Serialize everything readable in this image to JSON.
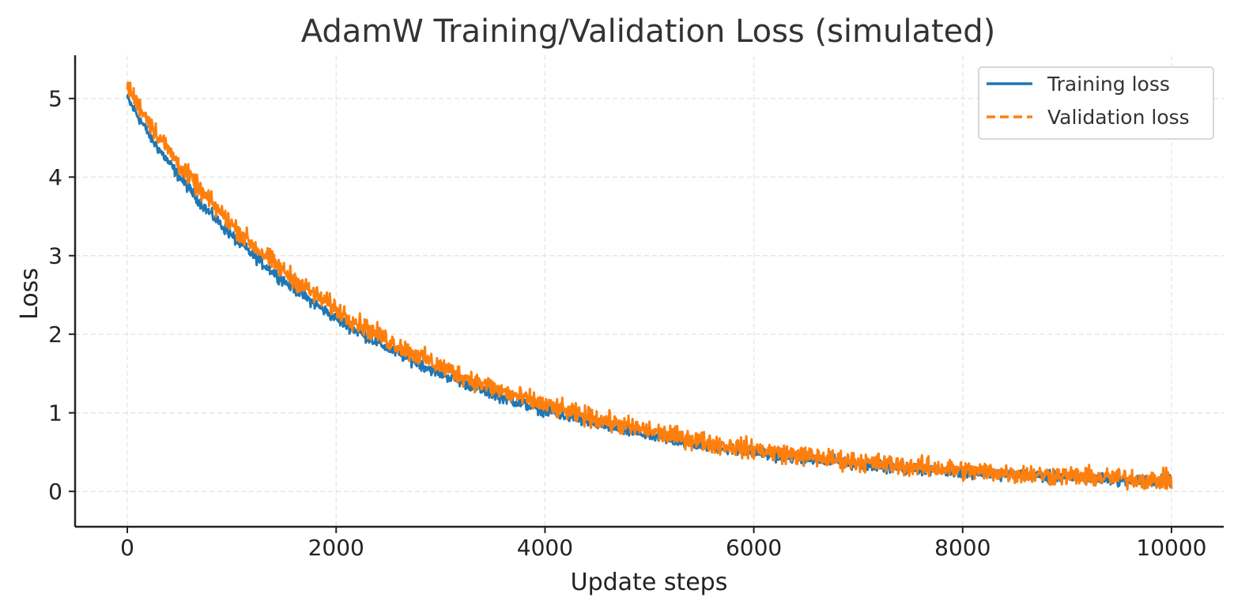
{
  "chart_data": {
    "type": "line",
    "title": "AdamW Training/Validation Loss (simulated)",
    "xlabel": "Update steps",
    "ylabel": "Loss",
    "xlim": [
      -500,
      10500
    ],
    "ylim": [
      -0.45,
      5.55
    ],
    "x_ticks": [
      0,
      2000,
      4000,
      6000,
      8000,
      10000
    ],
    "y_ticks": [
      0,
      1,
      2,
      3,
      4,
      5
    ],
    "grid": true,
    "legend_position": "top-right",
    "series": [
      {
        "name": "Training loss",
        "color": "#1f77b4",
        "dash": "solid",
        "x": [
          0,
          250,
          500,
          750,
          1000,
          1250,
          1500,
          1750,
          2000,
          2250,
          2500,
          2750,
          3000,
          3250,
          3500,
          3750,
          4000,
          4250,
          4500,
          4750,
          5000,
          5250,
          5500,
          5750,
          6000,
          6250,
          6500,
          6750,
          7000,
          7250,
          7500,
          7750,
          8000,
          8250,
          8500,
          8750,
          9000,
          9250,
          9500,
          9750,
          10000
        ],
        "values": [
          5.0,
          4.45,
          4.0,
          3.6,
          3.25,
          2.95,
          2.68,
          2.43,
          2.2,
          2.0,
          1.82,
          1.65,
          1.5,
          1.37,
          1.24,
          1.13,
          1.03,
          0.94,
          0.86,
          0.78,
          0.71,
          0.65,
          0.59,
          0.54,
          0.5,
          0.45,
          0.41,
          0.38,
          0.35,
          0.32,
          0.29,
          0.27,
          0.25,
          0.23,
          0.21,
          0.19,
          0.18,
          0.16,
          0.15,
          0.14,
          0.13
        ]
      },
      {
        "name": "Validation loss",
        "color": "#ff7f0e",
        "dash": "dashed",
        "x": [
          0,
          250,
          500,
          750,
          1000,
          1250,
          1500,
          1750,
          2000,
          2250,
          2500,
          2750,
          3000,
          3250,
          3500,
          3750,
          4000,
          4250,
          4500,
          4750,
          5000,
          5250,
          5500,
          5750,
          6000,
          6250,
          6500,
          6750,
          7000,
          7250,
          7500,
          7750,
          8000,
          8250,
          8500,
          8750,
          9000,
          9250,
          9500,
          9750,
          10000
        ],
        "values": [
          5.15,
          4.62,
          4.15,
          3.75,
          3.4,
          3.08,
          2.8,
          2.55,
          2.32,
          2.11,
          1.92,
          1.75,
          1.59,
          1.45,
          1.32,
          1.2,
          1.1,
          1.0,
          0.92,
          0.84,
          0.77,
          0.7,
          0.64,
          0.58,
          0.54,
          0.49,
          0.45,
          0.41,
          0.38,
          0.35,
          0.32,
          0.3,
          0.27,
          0.25,
          0.23,
          0.21,
          0.2,
          0.18,
          0.17,
          0.15,
          0.14
        ]
      }
    ]
  }
}
